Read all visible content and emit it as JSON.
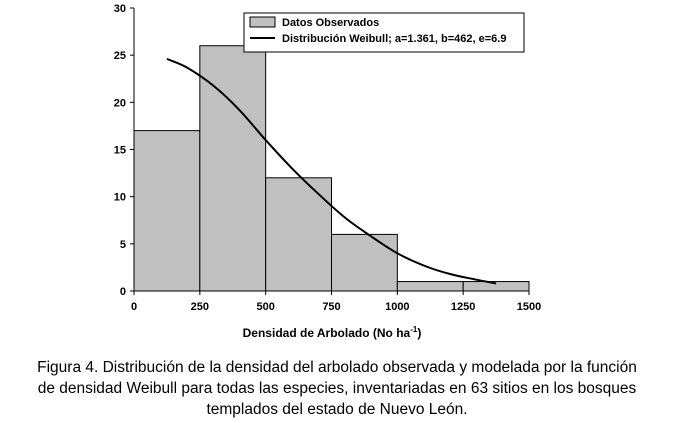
{
  "chart_data": {
    "type": "bar",
    "bins": [
      {
        "from": 0,
        "to": 250,
        "value": 17
      },
      {
        "from": 250,
        "to": 500,
        "value": 26
      },
      {
        "from": 500,
        "to": 750,
        "value": 12
      },
      {
        "from": 750,
        "to": 1000,
        "value": 6
      },
      {
        "from": 1000,
        "to": 1250,
        "value": 1
      },
      {
        "from": 1250,
        "to": 1500,
        "value": 1
      }
    ],
    "curve": {
      "name": "Distribución Weibull; a=1.361, b=462, e=6.9",
      "x": [
        125,
        200,
        300,
        400,
        500,
        600,
        700,
        800,
        900,
        1000,
        1100,
        1200,
        1300,
        1375
      ],
      "y": [
        24.6,
        23.7,
        21.8,
        19.2,
        16.0,
        13.0,
        10.3,
        7.8,
        5.8,
        4.0,
        2.7,
        1.8,
        1.2,
        0.8
      ]
    },
    "series_names": [
      "Datos Observados",
      "Distribución Weibull; a=1.361, b=462, e=6.9"
    ],
    "xlim": [
      0,
      1500
    ],
    "ylim": [
      0,
      30
    ],
    "xticks": [
      "0",
      "250",
      "500",
      "750",
      "1000",
      "1250",
      "1500"
    ],
    "yticks": [
      "0",
      "5",
      "10",
      "15",
      "20",
      "25",
      "30"
    ],
    "xlabel_main": "Densidad de Arbolado (No ha",
    "xlabel_sup": "-1",
    "xlabel_close": ")",
    "legend_position": "top-right",
    "bar_fill": "#c0c0c0",
    "line_color": "#000000",
    "grid": false
  },
  "caption": [
    "Figura 4. Distribución de la densidad del arbolado observada y modelada por la función",
    "de densidad Weibull para todas las especies, inventariadas en 63 sitios en los bosques",
    "templados del estado de Nuevo León."
  ]
}
